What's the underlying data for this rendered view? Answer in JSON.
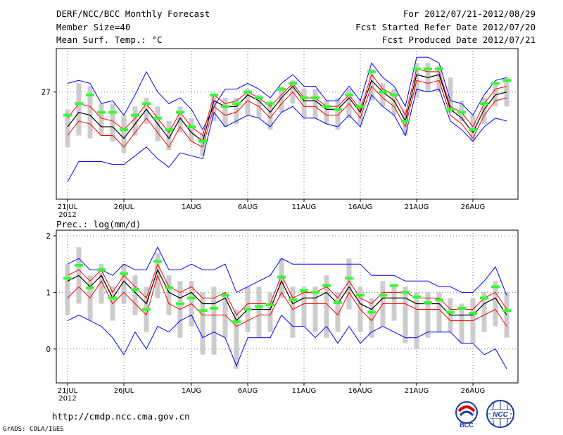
{
  "header": {
    "title": "DERF/NCC/BCC Monthly Forecast",
    "member_size": "Member Size=40",
    "period": "For 2012/07/21-2012/08/29",
    "fcst_started": "Fcst Started Refer Date 2012/07/20",
    "fcst_produced": "Fcst Produced Date 2012/07/21"
  },
  "footer": {
    "url": "http://cmdp.ncc.cma.gov.cn",
    "grads": "GrADS: COLA/IGES",
    "logo_left": "BCC",
    "logo_right": "NCC"
  },
  "colors": {
    "spread": "#cccccc",
    "mean": "#000000",
    "envelope": "#ff0000",
    "extreme": "#0000ff",
    "observed": "#33ff33"
  },
  "chart_data": [
    {
      "type": "line",
      "title": "Mean Surf. Temp.: °C",
      "xlabel": "",
      "ylabel": "",
      "x_days": 40,
      "x_ticks": [
        {
          "day": 0,
          "label": "21JUL",
          "sub": "2012"
        },
        {
          "day": 5,
          "label": "26JUL"
        },
        {
          "day": 11,
          "label": "1AUG"
        },
        {
          "day": 16,
          "label": "6AUG"
        },
        {
          "day": 21,
          "label": "11AUG"
        },
        {
          "day": 26,
          "label": "16AUG"
        },
        {
          "day": 31,
          "label": "21AUG"
        },
        {
          "day": 36,
          "label": "26AUG"
        }
      ],
      "y_ticks": [
        {
          "value": 27,
          "label": "27"
        }
      ],
      "ylim": [
        23.3,
        28.5
      ],
      "series": [
        {
          "name": "spread_top",
          "values": [
            26.4,
            27.3,
            27.2,
            26.6,
            26.6,
            26.2,
            26.5,
            26.8,
            26.5,
            26.0,
            26.5,
            26.1,
            25.6,
            26.9,
            26.8,
            26.8,
            27.1,
            26.9,
            26.7,
            27.2,
            27.4,
            27.1,
            27.1,
            26.7,
            26.8,
            27.1,
            26.7,
            27.8,
            27.3,
            27.1,
            26.4,
            28.0,
            28.0,
            27.9,
            27.5,
            26.7,
            26.2,
            26.8,
            27.3,
            27.5
          ]
        },
        {
          "name": "spread_bottom",
          "values": [
            25.1,
            25.5,
            25.4,
            25.5,
            25.3,
            24.9,
            25.5,
            25.9,
            25.3,
            25.0,
            25.6,
            25.3,
            24.8,
            26.0,
            25.8,
            25.9,
            26.2,
            26.1,
            25.7,
            26.3,
            26.6,
            26.1,
            26.1,
            25.9,
            25.7,
            26.1,
            25.9,
            26.7,
            26.5,
            26.2,
            25.5,
            26.8,
            27.0,
            27.0,
            26.3,
            26.0,
            25.3,
            25.9,
            26.5,
            26.5
          ]
        },
        {
          "name": "max",
          "values": [
            27.3,
            27.4,
            27.3,
            26.6,
            26.7,
            26.2,
            26.9,
            27.7,
            27.0,
            26.6,
            26.8,
            26.4,
            25.7,
            26.5,
            27.1,
            27.1,
            27.3,
            27.1,
            26.8,
            27.3,
            27.6,
            27.2,
            27.2,
            26.7,
            26.7,
            27.2,
            26.7,
            28.0,
            27.5,
            27.2,
            26.5,
            28.2,
            28.2,
            28.0,
            26.7,
            26.6,
            26.2,
            26.9,
            27.4,
            27.5
          ]
        },
        {
          "name": "upper",
          "values": [
            26.1,
            26.6,
            26.5,
            26.1,
            26.0,
            25.7,
            26.1,
            26.6,
            26.1,
            25.6,
            26.3,
            25.8,
            25.5,
            26.9,
            26.6,
            26.7,
            27.0,
            26.8,
            26.5,
            26.9,
            27.3,
            26.8,
            26.8,
            26.5,
            26.5,
            26.9,
            26.4,
            27.6,
            27.1,
            26.9,
            26.2,
            27.8,
            27.7,
            27.7,
            26.5,
            26.3,
            25.8,
            26.6,
            27.1,
            27.2
          ]
        },
        {
          "name": "mean",
          "values": [
            25.8,
            26.3,
            26.2,
            25.8,
            25.8,
            25.4,
            25.9,
            26.4,
            25.9,
            25.4,
            26.1,
            25.6,
            25.3,
            26.7,
            26.5,
            26.5,
            26.9,
            26.7,
            26.3,
            26.8,
            27.2,
            26.7,
            26.7,
            26.4,
            26.4,
            26.8,
            26.3,
            27.4,
            27.0,
            26.7,
            26.0,
            27.6,
            27.5,
            27.6,
            26.4,
            26.1,
            25.6,
            26.4,
            26.9,
            27.0
          ]
        },
        {
          "name": "lower",
          "values": [
            25.5,
            26.0,
            25.9,
            25.5,
            25.5,
            25.1,
            25.6,
            26.1,
            25.6,
            25.1,
            25.8,
            25.3,
            25.1,
            26.5,
            26.2,
            26.3,
            26.7,
            26.5,
            26.1,
            26.6,
            27.0,
            26.5,
            26.5,
            26.2,
            26.2,
            26.6,
            26.1,
            27.2,
            26.8,
            26.5,
            25.8,
            27.4,
            27.3,
            27.4,
            26.2,
            25.9,
            25.4,
            26.2,
            26.7,
            26.8
          ]
        },
        {
          "name": "min",
          "values": [
            23.9,
            24.6,
            24.6,
            24.6,
            24.5,
            24.5,
            24.8,
            25.1,
            24.7,
            24.4,
            24.9,
            24.8,
            24.7,
            26.3,
            25.8,
            26.0,
            26.2,
            26.1,
            25.8,
            26.3,
            26.5,
            26.1,
            26.1,
            25.9,
            25.8,
            26.2,
            25.8,
            26.9,
            26.5,
            26.2,
            25.5,
            27.1,
            27.0,
            27.1,
            26.0,
            25.7,
            25.3,
            25.8,
            26.1,
            26.0
          ]
        },
        {
          "name": "observed",
          "values": [
            26.2,
            26.6,
            26.9,
            26.3,
            26.3,
            25.7,
            26.2,
            26.6,
            26.1,
            25.7,
            26.3,
            25.8,
            25.3,
            26.9,
            26.5,
            26.6,
            27.0,
            26.8,
            26.6,
            27.1,
            27.3,
            26.8,
            26.8,
            26.5,
            26.4,
            26.9,
            26.5,
            27.7,
            27.0,
            26.9,
            26.0,
            27.8,
            27.8,
            27.8,
            26.4,
            26.3,
            25.7,
            26.6,
            27.3,
            27.4
          ]
        }
      ]
    },
    {
      "type": "line",
      "title": "Prec.: log(mm/d)",
      "xlabel": "",
      "ylabel": "",
      "x_days": 40,
      "x_ticks": [
        {
          "day": 0,
          "label": "21JUL",
          "sub": "2012"
        },
        {
          "day": 5,
          "label": "26JUL"
        },
        {
          "day": 11,
          "label": "1AUG"
        },
        {
          "day": 16,
          "label": "6AUG"
        },
        {
          "day": 21,
          "label": "11AUG"
        },
        {
          "day": 26,
          "label": "16AUG"
        },
        {
          "day": 31,
          "label": "21AUG"
        },
        {
          "day": 36,
          "label": "26AUG"
        }
      ],
      "y_ticks": [
        {
          "value": 2,
          "label": "2"
        },
        {
          "value": 1,
          "label": "1"
        },
        {
          "value": 0,
          "label": "0"
        }
      ],
      "ylim": [
        -0.6,
        2.1
      ],
      "series": [
        {
          "name": "spread_top",
          "values": [
            1.5,
            1.8,
            1.3,
            1.5,
            1.1,
            1.5,
            1.3,
            1.1,
            1.7,
            1.3,
            1.2,
            1.2,
            1.0,
            1.1,
            1.0,
            0.7,
            1.1,
            1.1,
            1.0,
            1.6,
            1.1,
            1.1,
            1.1,
            1.3,
            1.0,
            1.6,
            1.1,
            0.9,
            1.2,
            1.1,
            1.1,
            1.0,
            1.0,
            1.0,
            0.9,
            0.8,
            0.9,
            1.0,
            1.2,
            1.0
          ]
        },
        {
          "name": "spread_bottom",
          "values": [
            0.6,
            0.8,
            0.5,
            0.8,
            0.5,
            0.8,
            0.6,
            0.3,
            0.9,
            0.6,
            0.2,
            0.4,
            -0.1,
            -0.1,
            0.2,
            -0.35,
            0.3,
            0.2,
            0.3,
            0.9,
            0.2,
            0.4,
            0.3,
            0.2,
            0.3,
            0.7,
            0.3,
            0.2,
            0.4,
            0.5,
            0.1,
            0.0,
            0.2,
            0.3,
            0.3,
            0.1,
            0.1,
            0.3,
            0.4,
            0.2
          ]
        },
        {
          "name": "max",
          "values": [
            1.5,
            1.6,
            1.4,
            1.4,
            1.3,
            1.5,
            1.4,
            1.4,
            1.8,
            1.4,
            1.4,
            1.5,
            1.4,
            1.4,
            1.5,
            1.0,
            1.1,
            1.2,
            1.3,
            1.6,
            1.5,
            1.5,
            1.5,
            1.5,
            1.5,
            1.5,
            1.5,
            1.3,
            1.3,
            1.3,
            1.2,
            1.2,
            1.2,
            1.1,
            1.1,
            1.0,
            1.0,
            1.2,
            1.45,
            0.95
          ]
        },
        {
          "name": "upper",
          "values": [
            1.3,
            1.4,
            1.2,
            1.4,
            1.0,
            1.3,
            1.1,
            0.9,
            1.5,
            1.1,
            1.0,
            1.1,
            0.9,
            0.9,
            1.0,
            0.6,
            0.8,
            0.8,
            0.8,
            1.3,
            0.9,
            1.0,
            1.0,
            1.1,
            0.9,
            1.2,
            0.9,
            0.8,
            1.0,
            1.0,
            1.0,
            0.9,
            0.9,
            0.9,
            0.7,
            0.7,
            0.7,
            0.9,
            1.0,
            0.7
          ]
        },
        {
          "name": "mean",
          "values": [
            1.2,
            1.3,
            1.1,
            1.3,
            0.9,
            1.2,
            1.0,
            0.8,
            1.4,
            1.0,
            0.9,
            1.0,
            0.8,
            0.8,
            0.9,
            0.5,
            0.7,
            0.7,
            0.7,
            1.2,
            0.8,
            0.9,
            0.9,
            1.0,
            0.8,
            1.1,
            0.8,
            0.7,
            0.9,
            0.9,
            0.9,
            0.8,
            0.8,
            0.8,
            0.6,
            0.6,
            0.6,
            0.8,
            0.9,
            0.6
          ]
        },
        {
          "name": "lower",
          "values": [
            0.9,
            1.1,
            0.9,
            1.2,
            0.8,
            1.0,
            0.8,
            0.6,
            1.3,
            0.8,
            0.7,
            0.8,
            0.6,
            0.6,
            0.6,
            0.4,
            0.5,
            0.6,
            0.6,
            1.0,
            0.7,
            0.8,
            0.8,
            0.8,
            0.6,
            1.0,
            0.7,
            0.5,
            0.8,
            0.8,
            0.8,
            0.7,
            0.7,
            0.7,
            0.5,
            0.5,
            0.5,
            0.6,
            0.7,
            0.4
          ]
        },
        {
          "name": "min",
          "values": [
            0.5,
            0.6,
            0.5,
            0.4,
            0.2,
            -0.1,
            0.3,
            0.0,
            0.4,
            0.3,
            0.5,
            0.6,
            0.2,
            0.3,
            0.2,
            -0.3,
            0.2,
            0.2,
            0.2,
            0.6,
            0.4,
            0.4,
            0.2,
            0.4,
            0.1,
            0.4,
            0.1,
            0.3,
            0.4,
            0.3,
            0.2,
            0.2,
            0.3,
            0.3,
            0.3,
            0.1,
            0.1,
            -0.1,
            0.0,
            -0.35
          ]
        },
        {
          "name": "observed",
          "values": [
            1.25,
            1.48,
            1.08,
            1.4,
            0.9,
            1.33,
            1.05,
            0.7,
            1.55,
            1.08,
            0.8,
            0.9,
            0.68,
            0.72,
            0.95,
            0.48,
            0.7,
            0.75,
            0.78,
            1.27,
            0.87,
            1.03,
            1.0,
            1.12,
            0.82,
            1.25,
            0.95,
            0.65,
            0.95,
            1.12,
            1.0,
            0.92,
            0.82,
            0.87,
            0.65,
            0.72,
            0.63,
            0.9,
            1.1,
            0.68
          ]
        }
      ]
    }
  ]
}
